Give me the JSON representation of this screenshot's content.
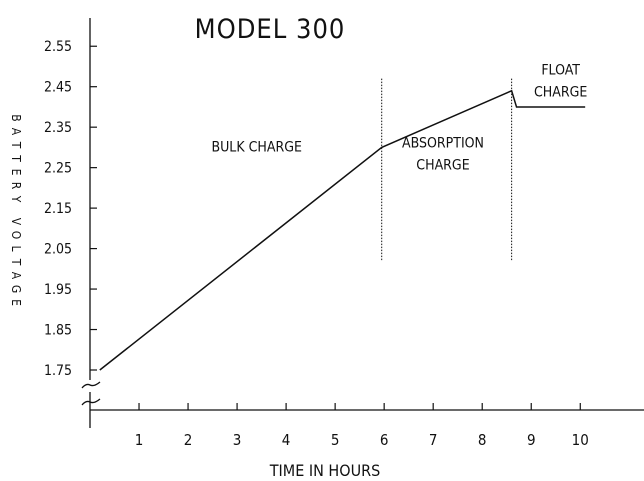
{
  "chart_data": {
    "type": "line",
    "title": "MODEL 300",
    "xlabel": "TIME IN HOURS",
    "ylabel": "BATTERY VOLTAGE",
    "x_ticks": [
      1,
      2,
      3,
      4,
      5,
      6,
      7,
      8,
      9,
      10
    ],
    "x_tick_labels": [
      "1",
      "2",
      "3",
      "4",
      "5",
      "6",
      "7",
      "8",
      "9",
      "10"
    ],
    "y_ticks": [
      1.75,
      1.85,
      1.95,
      2.05,
      2.15,
      2.25,
      2.35,
      2.45,
      2.55
    ],
    "y_tick_labels": [
      "1.75",
      "1.85",
      "1.95",
      "2.05",
      "2.15",
      "2.25",
      "2.35",
      "2.45",
      "2.55"
    ],
    "xlim": [
      0,
      11.3
    ],
    "ylim": [
      1.75,
      2.6
    ],
    "axis_break": "y",
    "grid": false,
    "series": [
      {
        "x": [
          0.2,
          5.95,
          8.6,
          8.7,
          10.1
        ],
        "y": [
          1.75,
          2.3,
          2.44,
          2.4,
          2.4
        ]
      }
    ],
    "phase_boundaries": [
      {
        "x": 5.95,
        "y_from": 2.02,
        "y_to": 2.47
      },
      {
        "x": 8.6,
        "y_from": 2.02,
        "y_to": 2.47
      }
    ],
    "annotations": [
      {
        "lines": [
          "BULK CHARGE"
        ],
        "x": 3.4,
        "y": 2.29
      },
      {
        "lines": [
          "ABSORPTION",
          "CHARGE"
        ],
        "x": 7.2,
        "y": 2.3
      },
      {
        "lines": [
          "FLOAT",
          "CHARGE"
        ],
        "x": 9.6,
        "y": 2.48
      }
    ]
  }
}
